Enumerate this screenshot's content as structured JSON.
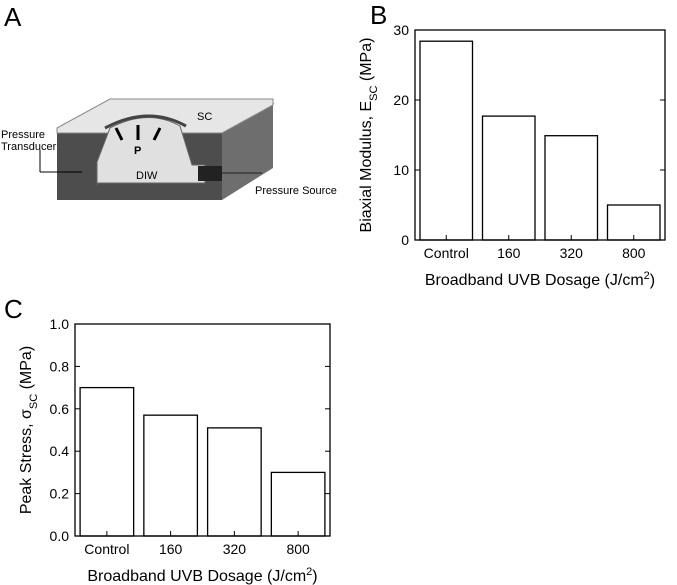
{
  "diagram": {
    "label": "A",
    "sc": "SC",
    "p": "P",
    "diw": "DIW",
    "transducer": [
      "Pressure",
      "Transducer"
    ],
    "source": "Pressure Source"
  },
  "chart_data": [
    {
      "type": "bar",
      "label": "B",
      "categories": [
        "Control",
        "160",
        "320",
        "800"
      ],
      "values": [
        28.4,
        17.7,
        14.9,
        5.0
      ],
      "color": "#ffffff",
      "ylim": [
        0,
        30
      ],
      "yticks": [
        0,
        10,
        20,
        30
      ],
      "ylabel": [
        "Biaxial Modulus, E",
        "SC",
        " (MPa)"
      ],
      "xlabel": [
        "Broadband UVB Dosage (J/cm",
        "2",
        ")"
      ]
    },
    {
      "type": "bar",
      "label": "C",
      "categories": [
        "Control",
        "160",
        "320",
        "800"
      ],
      "values": [
        0.7,
        0.57,
        0.51,
        0.3
      ],
      "color": "#ffffff",
      "ylim": [
        0,
        1.0
      ],
      "yticks": [
        {
          "value": 0,
          "label": "0.0"
        },
        0.2,
        0.4,
        0.6,
        0.8,
        {
          "value": 1,
          "label": "1.0"
        }
      ],
      "ylabel": [
        "Peak Stress, σ",
        "SC",
        " (MPa)"
      ],
      "xlabel": [
        "Broadband UVB Dosage (J/cm",
        "2",
        ")"
      ]
    }
  ]
}
